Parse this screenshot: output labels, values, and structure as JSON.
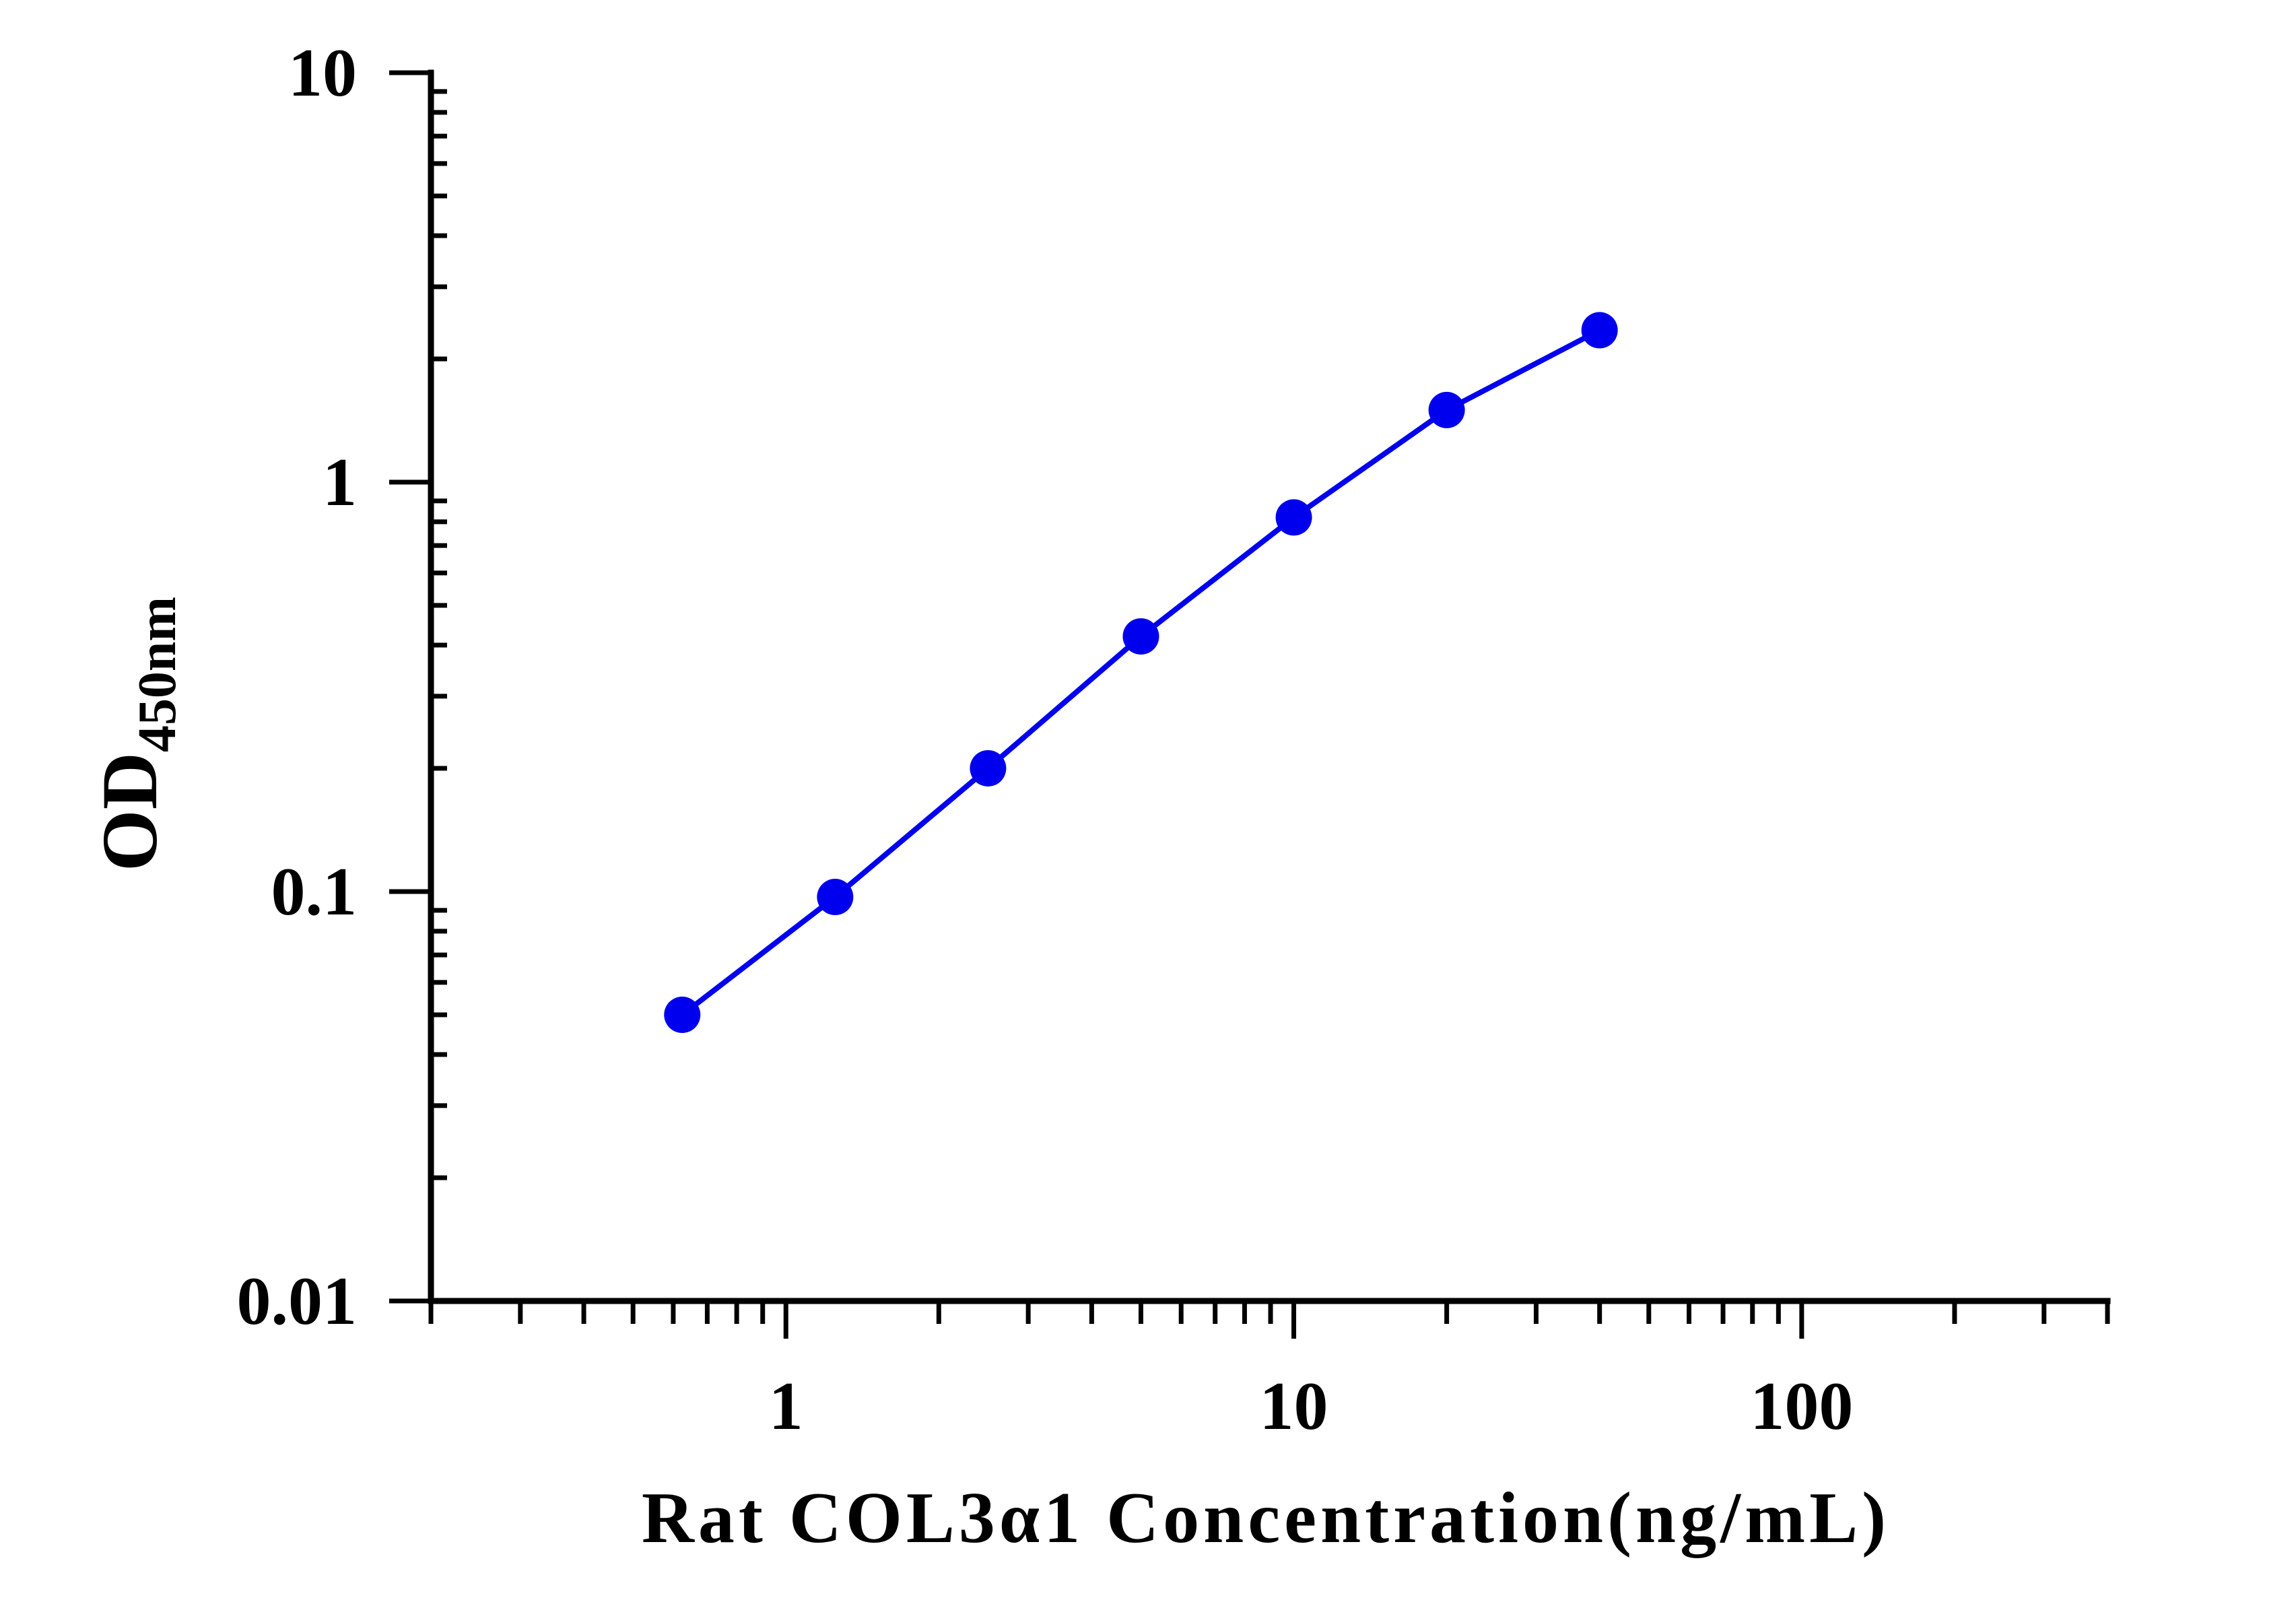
{
  "chart_data": {
    "type": "line",
    "title": "",
    "xlabel": "Rat COL3α1 Concentration(ng/mL)",
    "ylabel": "OD",
    "ylabel_subscript": "450nm",
    "xscale": "log",
    "yscale": "log",
    "xlim": [
      0.2,
      400
    ],
    "ylim": [
      0.01,
      10
    ],
    "xticks": [
      1,
      10,
      100
    ],
    "xtick_labels": [
      "1",
      "10",
      "100"
    ],
    "yticks": [
      0.01,
      0.1,
      1,
      10
    ],
    "ytick_labels": [
      "0.01",
      "0.1",
      "1",
      "10"
    ],
    "grid": false,
    "legend": "none",
    "color": "#0000ee",
    "series": [
      {
        "x": [
          0.625,
          1.25,
          2.5,
          5,
          10,
          20,
          40
        ],
        "y": [
          0.05,
          0.097,
          0.2,
          0.42,
          0.82,
          1.5,
          2.35
        ]
      }
    ]
  }
}
